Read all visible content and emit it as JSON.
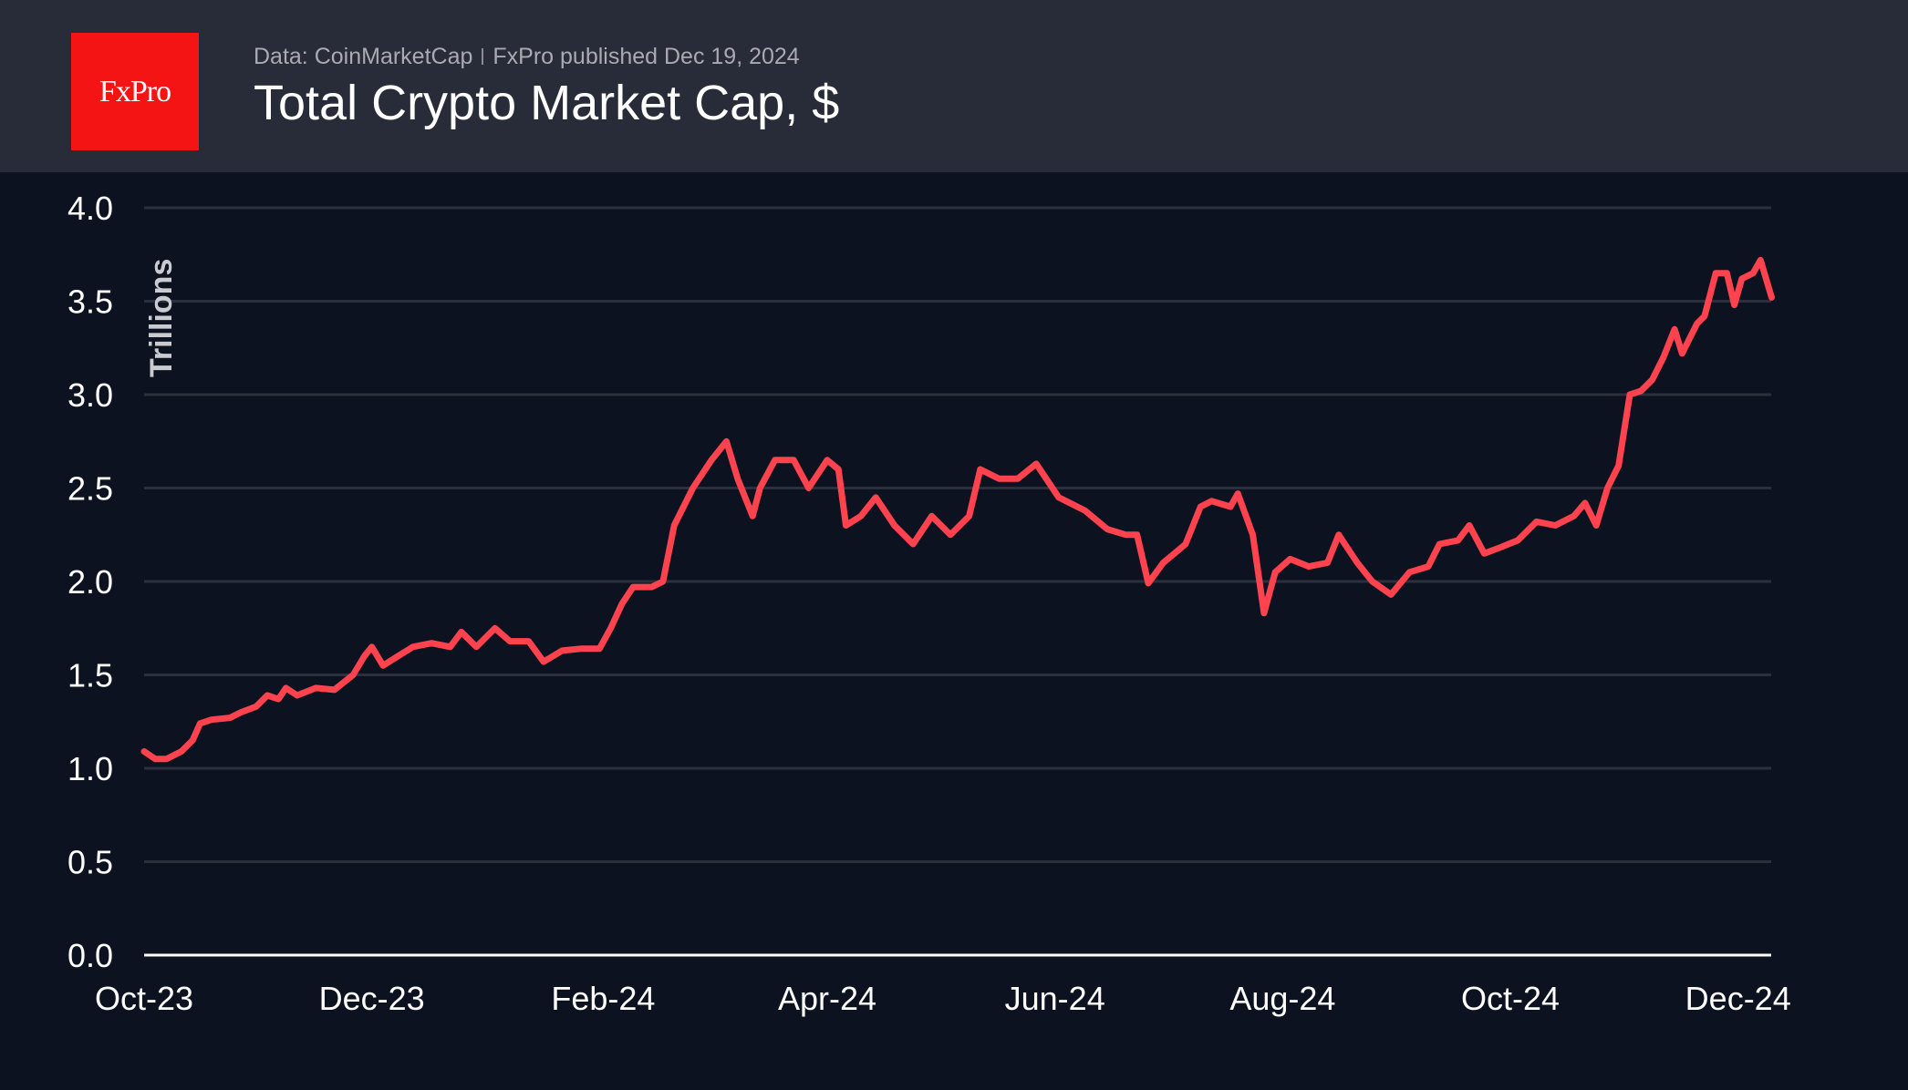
{
  "header": {
    "logo_text": "FxPro",
    "source": "Data: CoinMarketCap",
    "published": "FxPro published Dec 19, 2024",
    "title": "Total Crypto Market Cap, $"
  },
  "colors": {
    "line": "#ff434e",
    "background": "#0c1220",
    "header": "#282b38",
    "grid": "#2b303c",
    "logo": "#f41414"
  },
  "chart_data": {
    "type": "line",
    "title": "Total Crypto Market Cap, $",
    "ylabel": "Trillions",
    "xlabel": "",
    "ylim": [
      0,
      4.0
    ],
    "yticks": [
      "0.0",
      "0.5",
      "1.0",
      "1.5",
      "2.0",
      "2.5",
      "3.0",
      "3.5",
      "4.0"
    ],
    "xticks": [
      {
        "label": "Oct-23",
        "date": "2023-10-01"
      },
      {
        "label": "Dec-23",
        "date": "2023-12-01"
      },
      {
        "label": "Feb-24",
        "date": "2024-02-01"
      },
      {
        "label": "Apr-24",
        "date": "2024-04-01"
      },
      {
        "label": "Jun-24",
        "date": "2024-06-01"
      },
      {
        "label": "Aug-24",
        "date": "2024-08-01"
      },
      {
        "label": "Oct-24",
        "date": "2024-10-01"
      },
      {
        "label": "Dec-24",
        "date": "2024-12-01"
      }
    ],
    "grid": true,
    "x": [
      "2023-10-01",
      "2023-10-04",
      "2023-10-07",
      "2023-10-11",
      "2023-10-14",
      "2023-10-16",
      "2023-10-19",
      "2023-10-24",
      "2023-10-27",
      "2023-10-31",
      "2023-11-03",
      "2023-11-06",
      "2023-11-08",
      "2023-11-11",
      "2023-11-16",
      "2023-11-21",
      "2023-11-26",
      "2023-11-29",
      "2023-12-01",
      "2023-12-04",
      "2023-12-08",
      "2023-12-12",
      "2023-12-17",
      "2023-12-22",
      "2023-12-25",
      "2023-12-29",
      "2024-01-03",
      "2024-01-07",
      "2024-01-12",
      "2024-01-16",
      "2024-01-21",
      "2024-01-26",
      "2024-01-31",
      "2024-02-03",
      "2024-02-06",
      "2024-02-09",
      "2024-02-14",
      "2024-02-17",
      "2024-02-20",
      "2024-02-25",
      "2024-03-01",
      "2024-03-05",
      "2024-03-08",
      "2024-03-12",
      "2024-03-14",
      "2024-03-18",
      "2024-03-23",
      "2024-03-27",
      "2024-04-01",
      "2024-04-04",
      "2024-04-06",
      "2024-04-10",
      "2024-04-14",
      "2024-04-19",
      "2024-04-24",
      "2024-04-29",
      "2024-05-04",
      "2024-05-09",
      "2024-05-12",
      "2024-05-17",
      "2024-05-22",
      "2024-05-27",
      "2024-06-02",
      "2024-06-09",
      "2024-06-15",
      "2024-06-20",
      "2024-06-23",
      "2024-06-26",
      "2024-06-30",
      "2024-07-03",
      "2024-07-06",
      "2024-07-10",
      "2024-07-13",
      "2024-07-18",
      "2024-07-20",
      "2024-07-24",
      "2024-07-27",
      "2024-07-30",
      "2024-08-03",
      "2024-08-08",
      "2024-08-13",
      "2024-08-16",
      "2024-08-21",
      "2024-08-25",
      "2024-08-30",
      "2024-09-04",
      "2024-09-09",
      "2024-09-12",
      "2024-09-17",
      "2024-09-20",
      "2024-09-24",
      "2024-09-28",
      "2024-10-03",
      "2024-10-08",
      "2024-10-13",
      "2024-10-18",
      "2024-10-21",
      "2024-10-24",
      "2024-10-27",
      "2024-10-30",
      "2024-11-02",
      "2024-11-05",
      "2024-11-08",
      "2024-11-11",
      "2024-11-14",
      "2024-11-16",
      "2024-11-20",
      "2024-11-22",
      "2024-11-25",
      "2024-11-28",
      "2024-11-30",
      "2024-12-02",
      "2024-12-05",
      "2024-12-07",
      "2024-12-10"
    ],
    "values": [
      1.09,
      1.05,
      1.05,
      1.09,
      1.15,
      1.24,
      1.26,
      1.27,
      1.3,
      1.33,
      1.39,
      1.37,
      1.43,
      1.39,
      1.43,
      1.42,
      1.5,
      1.6,
      1.65,
      1.55,
      1.6,
      1.65,
      1.67,
      1.65,
      1.73,
      1.65,
      1.75,
      1.68,
      1.68,
      1.57,
      1.63,
      1.64,
      1.64,
      1.75,
      1.88,
      1.97,
      1.97,
      2.0,
      2.3,
      2.5,
      2.65,
      2.75,
      2.55,
      2.35,
      2.5,
      2.65,
      2.65,
      2.5,
      2.65,
      2.6,
      2.3,
      2.35,
      2.45,
      2.3,
      2.2,
      2.35,
      2.25,
      2.35,
      2.6,
      2.55,
      2.55,
      2.63,
      2.45,
      2.38,
      2.28,
      2.25,
      2.25,
      1.99,
      2.1,
      2.15,
      2.2,
      2.4,
      2.43,
      2.4,
      2.47,
      2.25,
      1.83,
      2.05,
      2.12,
      2.08,
      2.1,
      2.25,
      2.1,
      2.0,
      1.93,
      2.05,
      2.08,
      2.2,
      2.22,
      2.3,
      2.15,
      2.18,
      2.22,
      2.32,
      2.3,
      2.35,
      2.42,
      2.3,
      2.5,
      2.62,
      3.0,
      3.02,
      3.08,
      3.2,
      3.35,
      3.22,
      3.38,
      3.42,
      3.65,
      3.65,
      3.48,
      3.62,
      3.65,
      3.72,
      3.52
    ]
  }
}
